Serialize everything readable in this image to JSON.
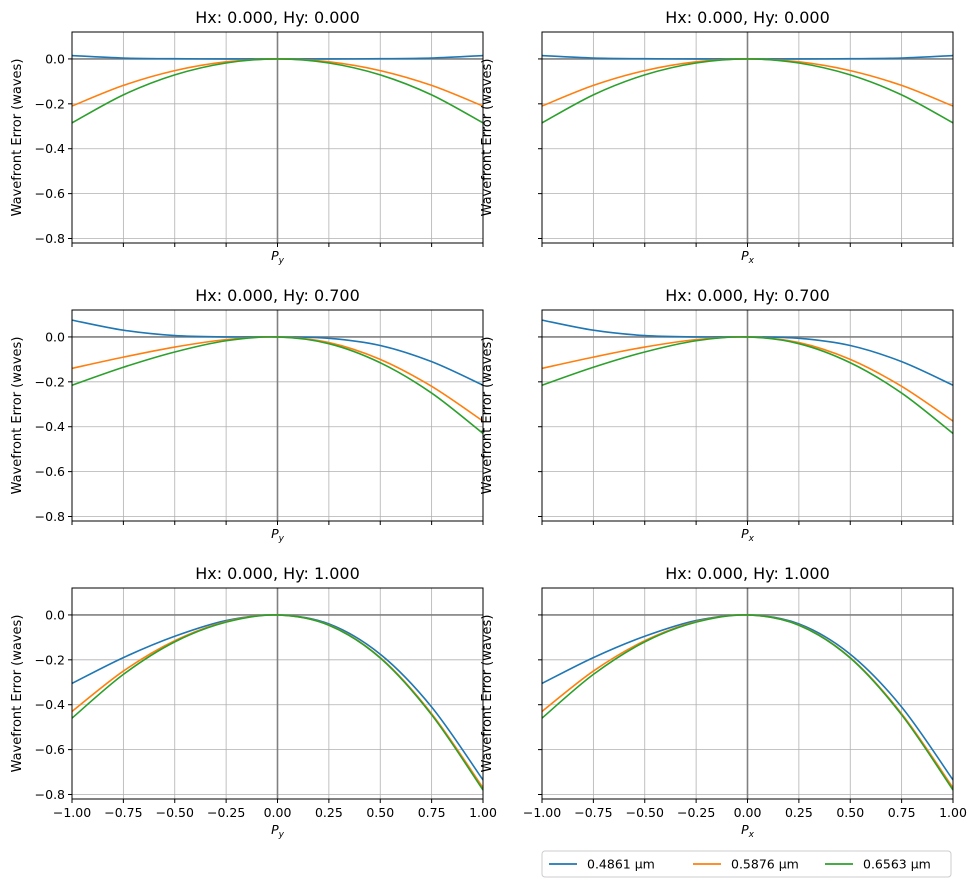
{
  "chart_data": [
    {
      "type": "line",
      "title": "Hx: 0.000, Hy: 0.000",
      "xlabel": "P",
      "xlabel_sub": "y",
      "ylabel": "Wavefront Error (waves)",
      "xlim": [
        -1,
        1
      ],
      "ylim": [
        -0.82,
        0.12
      ],
      "grid": true,
      "show_xticklabels": false,
      "show_yticklabels": true,
      "x": [
        -1.0,
        -0.75,
        -0.5,
        -0.25,
        0.0,
        0.25,
        0.5,
        0.75,
        1.0
      ],
      "series": [
        {
          "name": "0.4861 µm",
          "values": [
            0.015,
            0.004,
            0.001,
            0.0,
            0.0,
            0.0,
            0.001,
            0.004,
            0.015
          ]
        },
        {
          "name": "0.5876 µm",
          "values": [
            -0.21,
            -0.118,
            -0.052,
            -0.013,
            0.0,
            -0.013,
            -0.052,
            -0.118,
            -0.21
          ]
        },
        {
          "name": "0.6563 µm",
          "values": [
            -0.285,
            -0.16,
            -0.071,
            -0.018,
            0.0,
            -0.018,
            -0.071,
            -0.16,
            -0.285
          ]
        }
      ]
    },
    {
      "type": "line",
      "title": "Hx: 0.000, Hy: 0.000",
      "xlabel": "P",
      "xlabel_sub": "x",
      "ylabel": "Wavefront Error (waves)",
      "xlim": [
        -1,
        1
      ],
      "ylim": [
        -0.82,
        0.12
      ],
      "grid": true,
      "show_xticklabels": false,
      "show_yticklabels": false,
      "x": [
        -1.0,
        -0.75,
        -0.5,
        -0.25,
        0.0,
        0.25,
        0.5,
        0.75,
        1.0
      ],
      "series": [
        {
          "name": "0.4861 µm",
          "values": [
            0.015,
            0.004,
            0.001,
            0.0,
            0.0,
            0.0,
            0.001,
            0.004,
            0.015
          ]
        },
        {
          "name": "0.5876 µm",
          "values": [
            -0.21,
            -0.118,
            -0.052,
            -0.013,
            0.0,
            -0.013,
            -0.052,
            -0.118,
            -0.21
          ]
        },
        {
          "name": "0.6563 µm",
          "values": [
            -0.285,
            -0.16,
            -0.071,
            -0.018,
            0.0,
            -0.018,
            -0.071,
            -0.16,
            -0.285
          ]
        }
      ]
    },
    {
      "type": "line",
      "title": "Hx: 0.000, Hy: 0.700",
      "xlabel": "P",
      "xlabel_sub": "y",
      "ylabel": "Wavefront Error (waves)",
      "xlim": [
        -1,
        1
      ],
      "ylim": [
        -0.82,
        0.12
      ],
      "grid": true,
      "show_xticklabels": false,
      "show_yticklabels": true,
      "x": [
        -1.0,
        -0.75,
        -0.5,
        -0.25,
        0.0,
        0.25,
        0.5,
        0.75,
        1.0
      ],
      "series": [
        {
          "name": "0.4861 µm",
          "values": [
            0.075,
            0.03,
            0.006,
            0.0,
            0.0,
            -0.006,
            -0.038,
            -0.11,
            -0.215
          ]
        },
        {
          "name": "0.5876 µm",
          "values": [
            -0.14,
            -0.09,
            -0.045,
            -0.012,
            0.0,
            -0.025,
            -0.1,
            -0.22,
            -0.375
          ]
        },
        {
          "name": "0.6563 µm",
          "values": [
            -0.215,
            -0.135,
            -0.067,
            -0.017,
            0.0,
            -0.03,
            -0.115,
            -0.25,
            -0.43
          ]
        }
      ]
    },
    {
      "type": "line",
      "title": "Hx: 0.000, Hy: 0.700",
      "xlabel": "P",
      "xlabel_sub": "x",
      "ylabel": "Wavefront Error (waves)",
      "xlim": [
        -1,
        1
      ],
      "ylim": [
        -0.82,
        0.12
      ],
      "grid": true,
      "show_xticklabels": false,
      "show_yticklabels": false,
      "x": [
        -1.0,
        -0.75,
        -0.5,
        -0.25,
        0.0,
        0.25,
        0.5,
        0.75,
        1.0
      ],
      "series": [
        {
          "name": "0.4861 µm",
          "values": [
            0.075,
            0.03,
            0.006,
            0.0,
            0.0,
            -0.006,
            -0.038,
            -0.11,
            -0.215
          ]
        },
        {
          "name": "0.5876 µm",
          "values": [
            -0.14,
            -0.09,
            -0.045,
            -0.012,
            0.0,
            -0.025,
            -0.1,
            -0.22,
            -0.375
          ]
        },
        {
          "name": "0.6563 µm",
          "values": [
            -0.215,
            -0.135,
            -0.067,
            -0.017,
            0.0,
            -0.03,
            -0.115,
            -0.25,
            -0.43
          ]
        }
      ]
    },
    {
      "type": "line",
      "title": "Hx: 0.000, Hy: 1.000",
      "xlabel": "P",
      "xlabel_sub": "y",
      "ylabel": "Wavefront Error (waves)",
      "xlim": [
        -1,
        1
      ],
      "ylim": [
        -0.82,
        0.12
      ],
      "grid": true,
      "show_xticklabels": true,
      "show_yticklabels": true,
      "x": [
        -1.0,
        -0.75,
        -0.5,
        -0.25,
        0.0,
        0.25,
        0.5,
        0.75,
        1.0
      ],
      "series": [
        {
          "name": "0.4861 µm",
          "values": [
            -0.305,
            -0.19,
            -0.095,
            -0.025,
            0.0,
            -0.04,
            -0.175,
            -0.41,
            -0.735
          ]
        },
        {
          "name": "0.5876 µm",
          "values": [
            -0.43,
            -0.25,
            -0.115,
            -0.03,
            0.0,
            -0.045,
            -0.19,
            -0.44,
            -0.77
          ]
        },
        {
          "name": "0.6563 µm",
          "values": [
            -0.46,
            -0.265,
            -0.12,
            -0.032,
            0.0,
            -0.046,
            -0.192,
            -0.445,
            -0.78
          ]
        }
      ]
    },
    {
      "type": "line",
      "title": "Hx: 0.000, Hy: 1.000",
      "xlabel": "P",
      "xlabel_sub": "x",
      "ylabel": "Wavefront Error (waves)",
      "xlim": [
        -1,
        1
      ],
      "ylim": [
        -0.82,
        0.12
      ],
      "grid": true,
      "show_xticklabels": true,
      "show_yticklabels": false,
      "x": [
        -1.0,
        -0.75,
        -0.5,
        -0.25,
        0.0,
        0.25,
        0.5,
        0.75,
        1.0
      ],
      "series": [
        {
          "name": "0.4861 µm",
          "values": [
            -0.305,
            -0.19,
            -0.095,
            -0.025,
            0.0,
            -0.04,
            -0.175,
            -0.41,
            -0.735
          ]
        },
        {
          "name": "0.5876 µm",
          "values": [
            -0.43,
            -0.25,
            -0.115,
            -0.03,
            0.0,
            -0.045,
            -0.19,
            -0.44,
            -0.77
          ]
        },
        {
          "name": "0.6563 µm",
          "values": [
            -0.46,
            -0.265,
            -0.12,
            -0.032,
            0.0,
            -0.046,
            -0.192,
            -0.445,
            -0.78
          ]
        }
      ]
    }
  ],
  "axes": {
    "xticks": [
      -1.0,
      -0.75,
      -0.5,
      -0.25,
      0.0,
      0.25,
      0.5,
      0.75,
      1.0
    ],
    "xtick_labels": [
      "−1.00",
      "−0.75",
      "−0.50",
      "−0.25",
      "0.00",
      "0.25",
      "0.50",
      "0.75",
      "1.00"
    ],
    "yticks": [
      0.0,
      -0.2,
      -0.4,
      -0.6,
      -0.8
    ],
    "ytick_labels": [
      "0.0",
      "−0.2",
      "−0.4",
      "−0.6",
      "−0.8"
    ]
  },
  "legend": {
    "placement": "bottom-right",
    "entries": [
      "0.4861 µm",
      "0.5876 µm",
      "0.6563 µm"
    ]
  },
  "colors": {
    "series": [
      "#1f77b4",
      "#ff7f0e",
      "#2ca02c"
    ],
    "grid": "#b0b0b0",
    "zero_line": "#808080"
  }
}
